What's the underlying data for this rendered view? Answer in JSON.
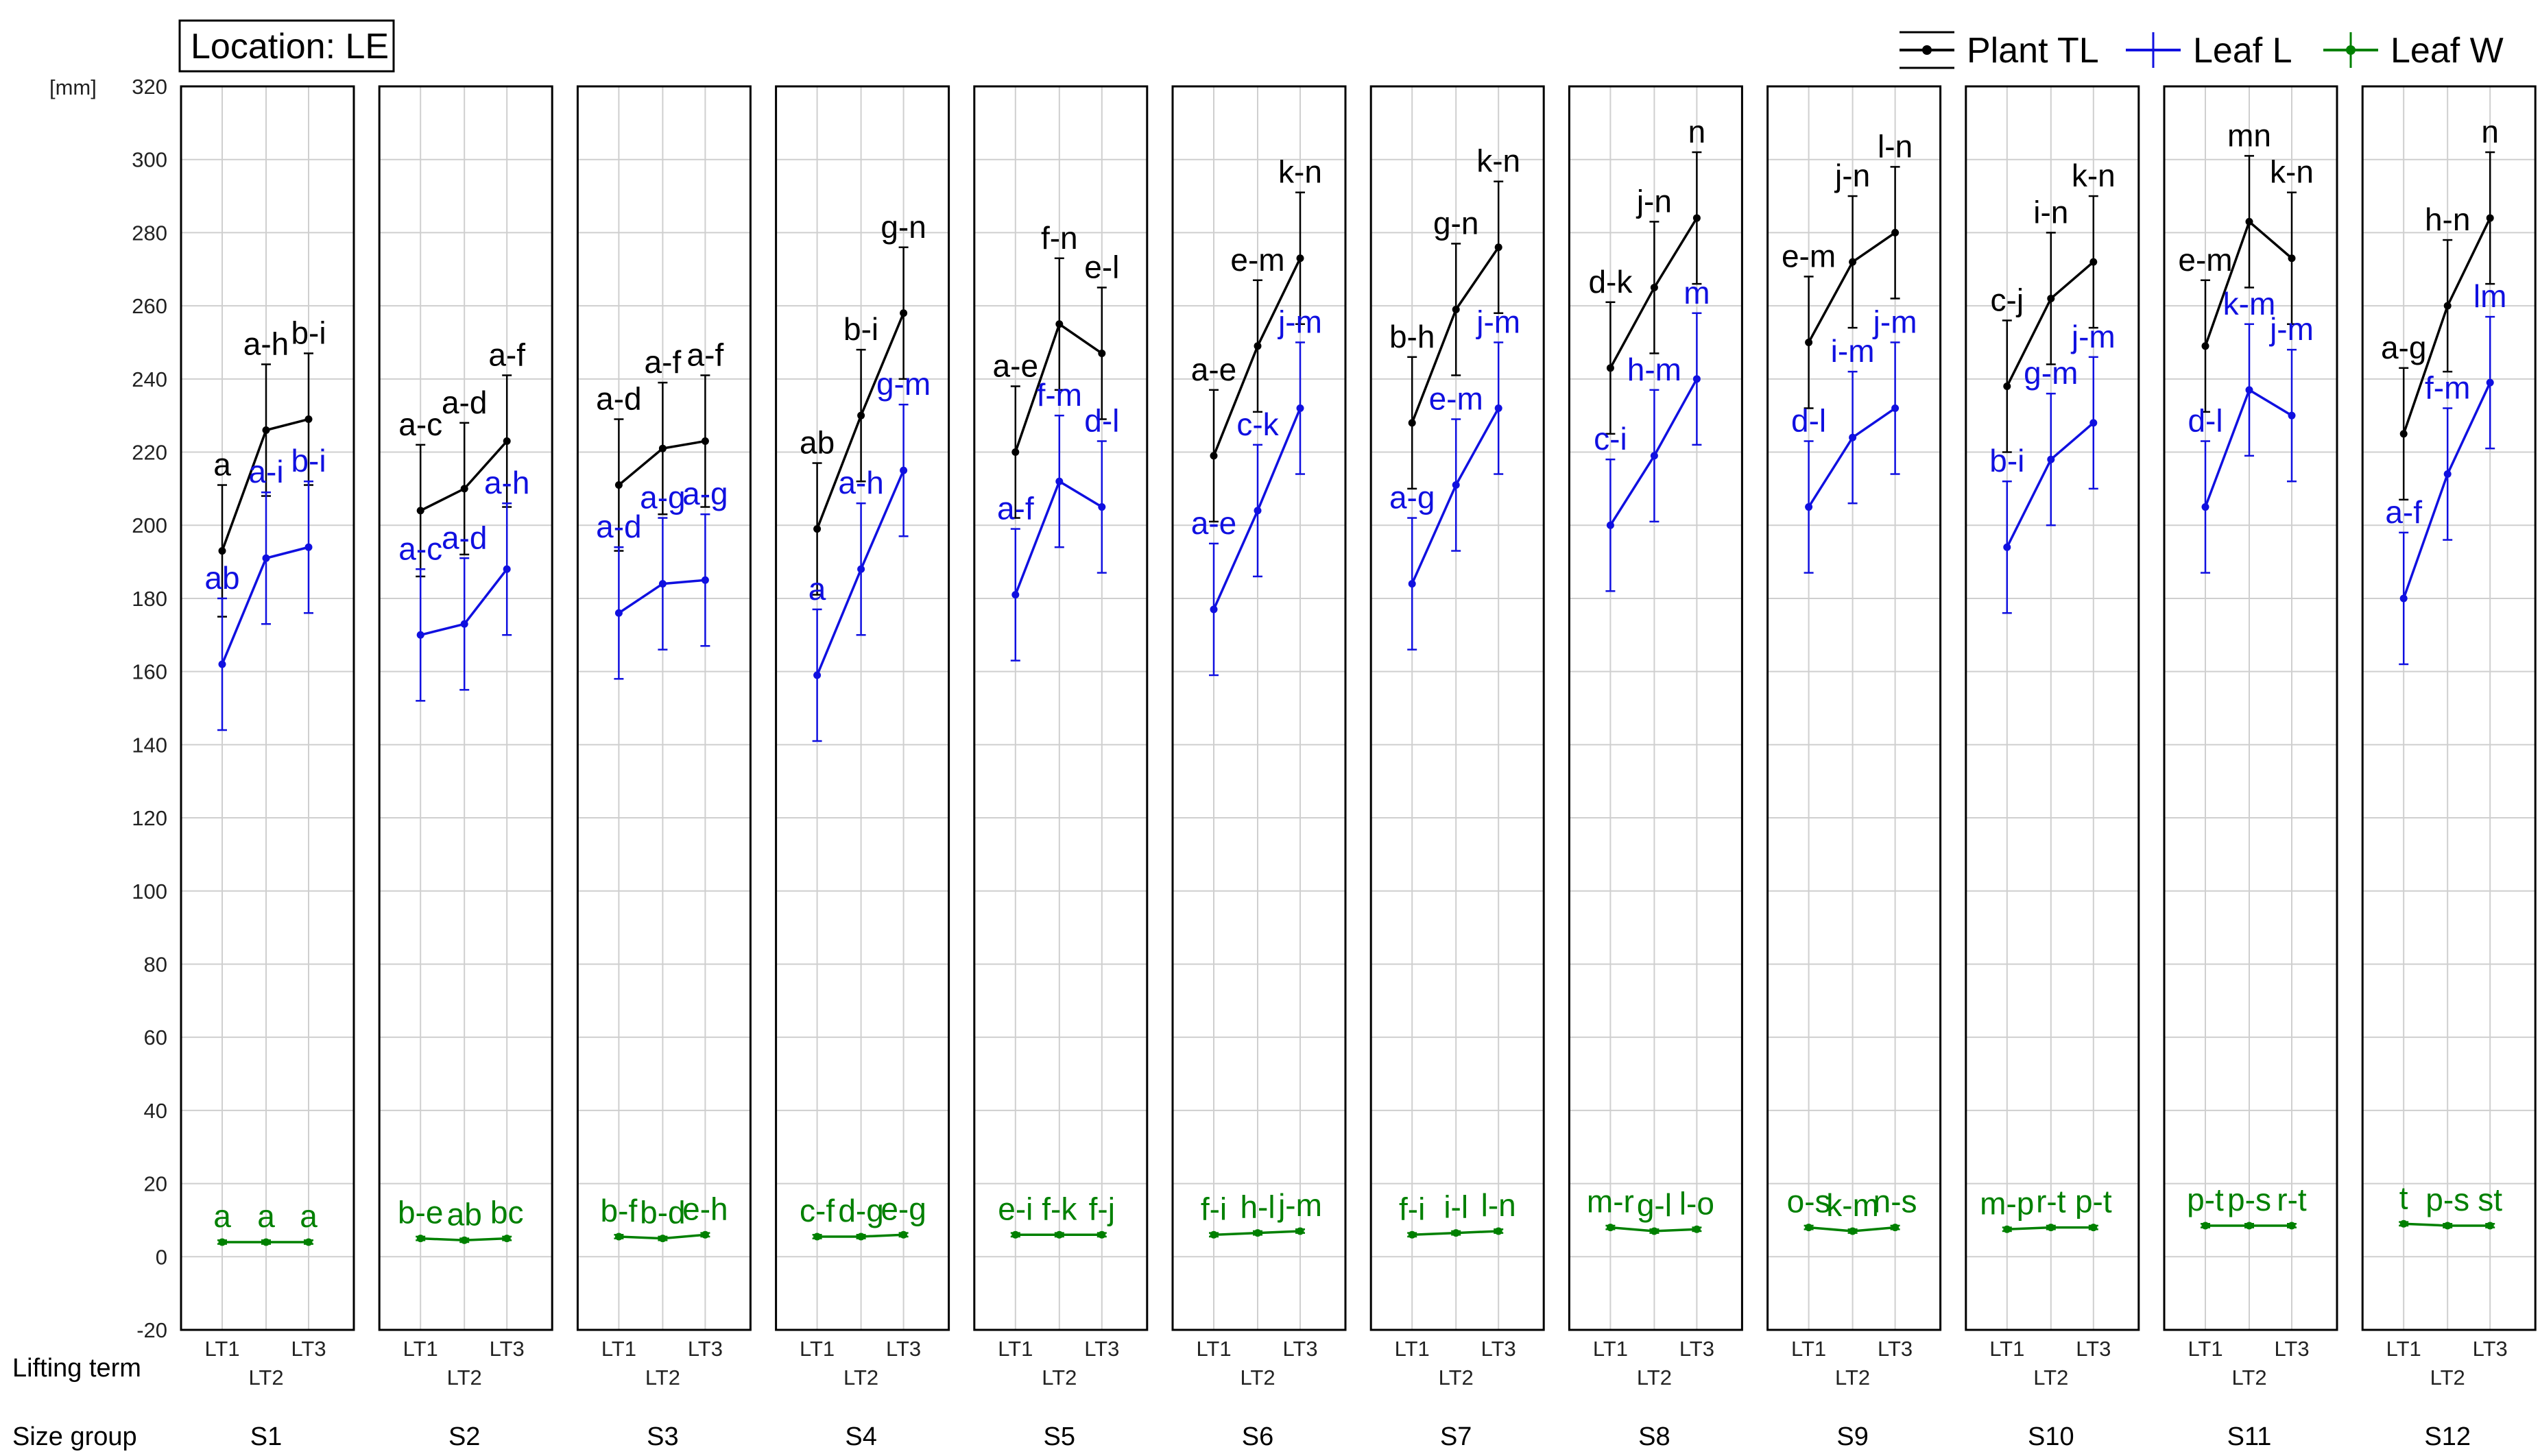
{
  "chart_data": {
    "type": "line",
    "location_label": "Location: LE",
    "y_unit": "[mm]",
    "ylim": [
      -20,
      320
    ],
    "y_ticks": [
      -20,
      0,
      20,
      40,
      60,
      80,
      100,
      120,
      140,
      160,
      180,
      200,
      220,
      240,
      260,
      280,
      300,
      320
    ],
    "x_tick_labels": [
      "LT1",
      "LT2",
      "LT3"
    ],
    "row_labels": [
      "Lifting term",
      "Size group"
    ],
    "grid": true,
    "legend_position": "top-right",
    "series": [
      {
        "key": "tl",
        "name": "Plant TL",
        "color": "#000000"
      },
      {
        "key": "ll",
        "name": "Leaf L",
        "color": "#1010e0"
      },
      {
        "key": "lw",
        "name": "Leaf W",
        "color": "#008000"
      }
    ],
    "groups": [
      {
        "name": "S1",
        "tl": {
          "values": [
            193,
            226,
            229
          ],
          "err": [
            18,
            18,
            18
          ],
          "labels": [
            "a",
            "a-h",
            "b-i"
          ]
        },
        "ll": {
          "values": [
            162,
            191,
            194
          ],
          "err": [
            18,
            18,
            18
          ],
          "labels": [
            "ab",
            "a-i",
            "b-i"
          ]
        },
        "lw": {
          "values": [
            4,
            4,
            4
          ],
          "err": [
            0.5,
            0.5,
            0.5
          ],
          "labels": [
            "a",
            "a",
            "a"
          ]
        }
      },
      {
        "name": "S2",
        "tl": {
          "values": [
            204,
            210,
            223
          ],
          "err": [
            18,
            18,
            18
          ],
          "labels": [
            "a-c",
            "a-d",
            "a-f"
          ]
        },
        "ll": {
          "values": [
            170,
            173,
            188
          ],
          "err": [
            18,
            18,
            18
          ],
          "labels": [
            "a-c",
            "a-d",
            "a-h"
          ]
        },
        "lw": {
          "values": [
            5,
            4.5,
            5
          ],
          "err": [
            0.5,
            0.5,
            0.5
          ],
          "labels": [
            "b-e",
            "ab",
            "bc"
          ]
        }
      },
      {
        "name": "S3",
        "tl": {
          "values": [
            211,
            221,
            223
          ],
          "err": [
            18,
            18,
            18
          ],
          "labels": [
            "a-d",
            "a-f",
            "a-f"
          ]
        },
        "ll": {
          "values": [
            176,
            184,
            185
          ],
          "err": [
            18,
            18,
            18
          ],
          "labels": [
            "a-d",
            "a-g",
            "a-g"
          ]
        },
        "lw": {
          "values": [
            5.5,
            5,
            6
          ],
          "err": [
            0.5,
            0.5,
            0.5
          ],
          "labels": [
            "b-f",
            "b-d",
            "e-h"
          ]
        }
      },
      {
        "name": "S4",
        "tl": {
          "values": [
            199,
            230,
            258
          ],
          "err": [
            18,
            18,
            18
          ],
          "labels": [
            "ab",
            "b-i",
            "g-n"
          ]
        },
        "ll": {
          "values": [
            159,
            188,
            215
          ],
          "err": [
            18,
            18,
            18
          ],
          "labels": [
            "a",
            "a-h",
            "g-m"
          ]
        },
        "lw": {
          "values": [
            5.5,
            5.5,
            6
          ],
          "err": [
            0.5,
            0.5,
            0.5
          ],
          "labels": [
            "c-f",
            "d-g",
            "e-g"
          ]
        }
      },
      {
        "name": "S5",
        "tl": {
          "values": [
            220,
            255,
            247
          ],
          "err": [
            18,
            18,
            18
          ],
          "labels": [
            "a-e",
            "f-n",
            "e-l"
          ]
        },
        "ll": {
          "values": [
            181,
            212,
            205
          ],
          "err": [
            18,
            18,
            18
          ],
          "labels": [
            "a-f",
            "f-m",
            "d-l"
          ]
        },
        "lw": {
          "values": [
            6,
            6,
            6
          ],
          "err": [
            0.5,
            0.5,
            0.5
          ],
          "labels": [
            "e-i",
            "f-k",
            "f-j"
          ]
        }
      },
      {
        "name": "S6",
        "tl": {
          "values": [
            219,
            249,
            273
          ],
          "err": [
            18,
            18,
            18
          ],
          "labels": [
            "a-e",
            "e-m",
            "k-n"
          ]
        },
        "ll": {
          "values": [
            177,
            204,
            232
          ],
          "err": [
            18,
            18,
            18
          ],
          "labels": [
            "a-e",
            "c-k",
            "j-m"
          ]
        },
        "lw": {
          "values": [
            6,
            6.5,
            7
          ],
          "err": [
            0.5,
            0.5,
            0.5
          ],
          "labels": [
            "f-i",
            "h-l",
            "j-m"
          ]
        }
      },
      {
        "name": "S7",
        "tl": {
          "values": [
            228,
            259,
            276
          ],
          "err": [
            18,
            18,
            18
          ],
          "labels": [
            "b-h",
            "g-n",
            "k-n"
          ]
        },
        "ll": {
          "values": [
            184,
            211,
            232
          ],
          "err": [
            18,
            18,
            18
          ],
          "labels": [
            "a-g",
            "e-m",
            "j-m"
          ]
        },
        "lw": {
          "values": [
            6,
            6.5,
            7
          ],
          "err": [
            0.5,
            0.5,
            0.5
          ],
          "labels": [
            "f-i",
            "i-l",
            "l-n"
          ]
        }
      },
      {
        "name": "S8",
        "tl": {
          "values": [
            243,
            265,
            284
          ],
          "err": [
            18,
            18,
            18
          ],
          "labels": [
            "d-k",
            "j-n",
            "n"
          ]
        },
        "ll": {
          "values": [
            200,
            219,
            240
          ],
          "err": [
            18,
            18,
            18
          ],
          "labels": [
            "c-i",
            "h-m",
            "m"
          ]
        },
        "lw": {
          "values": [
            8,
            7,
            7.5
          ],
          "err": [
            0.5,
            0.5,
            0.5
          ],
          "labels": [
            "m-r",
            "g-l",
            "l-o"
          ]
        }
      },
      {
        "name": "S9",
        "tl": {
          "values": [
            250,
            272,
            280
          ],
          "err": [
            18,
            18,
            18
          ],
          "labels": [
            "e-m",
            "j-n",
            "l-n"
          ]
        },
        "ll": {
          "values": [
            205,
            224,
            232
          ],
          "err": [
            18,
            18,
            18
          ],
          "labels": [
            "d-l",
            "i-m",
            "j-m"
          ]
        },
        "lw": {
          "values": [
            8,
            7,
            8
          ],
          "err": [
            0.5,
            0.5,
            0.5
          ],
          "labels": [
            "o-s",
            "k-m",
            "n-s"
          ]
        }
      },
      {
        "name": "S10",
        "tl": {
          "values": [
            238,
            262,
            272
          ],
          "err": [
            18,
            18,
            18
          ],
          "labels": [
            "c-j",
            "i-n",
            "k-n"
          ]
        },
        "ll": {
          "values": [
            194,
            218,
            228
          ],
          "err": [
            18,
            18,
            18
          ],
          "labels": [
            "b-i",
            "g-m",
            "j-m"
          ]
        },
        "lw": {
          "values": [
            7.5,
            8,
            8
          ],
          "err": [
            0.5,
            0.5,
            0.5
          ],
          "labels": [
            "m-p",
            "r-t",
            "p-t"
          ]
        }
      },
      {
        "name": "S11",
        "tl": {
          "values": [
            249,
            283,
            273
          ],
          "err": [
            18,
            18,
            18
          ],
          "labels": [
            "e-m",
            "mn",
            "k-n"
          ]
        },
        "ll": {
          "values": [
            205,
            237,
            230
          ],
          "err": [
            18,
            18,
            18
          ],
          "labels": [
            "d-l",
            "k-m",
            "j-m"
          ]
        },
        "lw": {
          "values": [
            8.5,
            8.5,
            8.5
          ],
          "err": [
            0.5,
            0.5,
            0.5
          ],
          "labels": [
            "p-t",
            "p-s",
            "r-t"
          ]
        }
      },
      {
        "name": "S12",
        "tl": {
          "values": [
            225,
            260,
            284
          ],
          "err": [
            18,
            18,
            18
          ],
          "labels": [
            "a-g",
            "h-n",
            "n"
          ]
        },
        "ll": {
          "values": [
            180,
            214,
            239
          ],
          "err": [
            18,
            18,
            18
          ],
          "labels": [
            "a-f",
            "f-m",
            "lm"
          ]
        },
        "lw": {
          "values": [
            9,
            8.5,
            8.5
          ],
          "err": [
            0.5,
            0.5,
            0.5
          ],
          "labels": [
            "t",
            "p-s",
            "st"
          ]
        }
      }
    ]
  }
}
